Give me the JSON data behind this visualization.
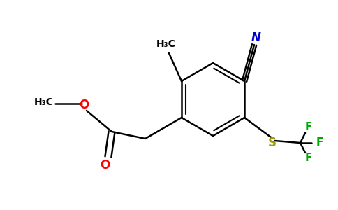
{
  "background_color": "#ffffff",
  "bond_color": "#000000",
  "colors": {
    "N": "#0000cc",
    "O": "#ff0000",
    "S": "#999900",
    "F": "#00aa00",
    "C": "#000000"
  },
  "figsize": [
    4.84,
    3.0
  ],
  "dpi": 100
}
